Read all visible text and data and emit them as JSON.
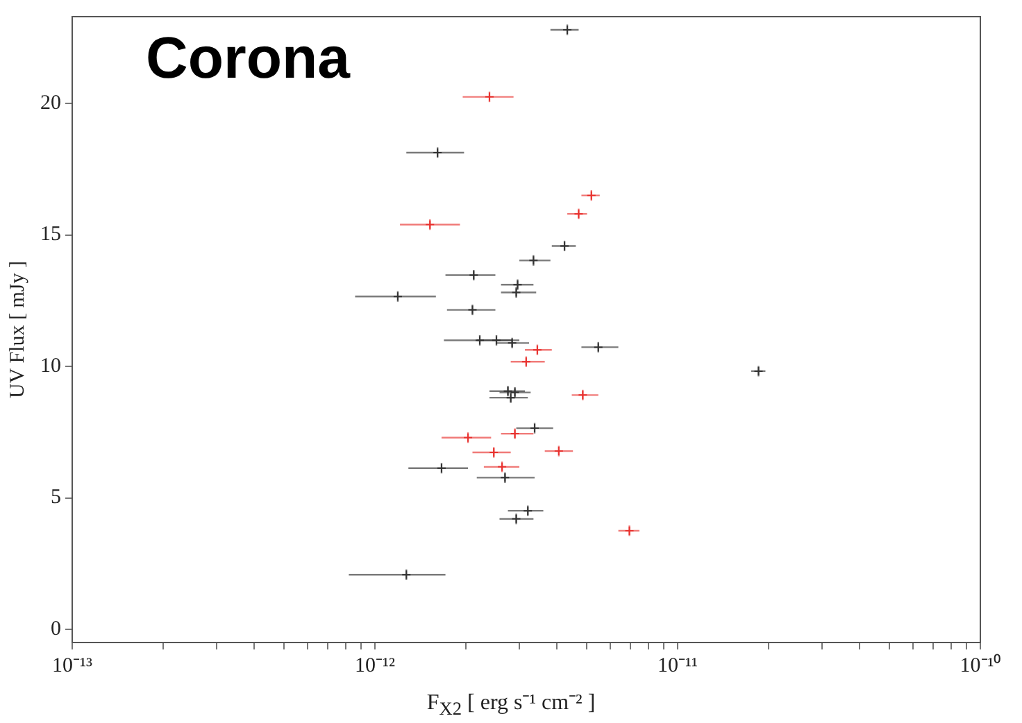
{
  "chart_data": {
    "type": "scatter",
    "title": "Corona",
    "xlabel": "F$_{X2}$ [ erg s⁻¹ cm⁻² ]",
    "ylabel": "UV Flux [ mJy ]",
    "log": "x",
    "grid": false,
    "marker": "cross",
    "xlim": [
      1e-13,
      1e-10
    ],
    "xticks": [
      {
        "value": 1e-13,
        "label": "10⁻¹³"
      },
      {
        "value": 2e-13,
        "label": null
      },
      {
        "value": 3e-13,
        "label": null
      },
      {
        "value": 4e-13,
        "label": null
      },
      {
        "value": 5e-13,
        "label": null
      },
      {
        "value": 6e-13,
        "label": null
      },
      {
        "value": 7e-13,
        "label": null
      },
      {
        "value": 8e-13,
        "label": null
      },
      {
        "value": 9e-13,
        "label": null
      },
      {
        "value": 1e-12,
        "label": "10⁻¹²"
      },
      {
        "value": 2e-12,
        "label": null
      },
      {
        "value": 3e-12,
        "label": null
      },
      {
        "value": 4e-12,
        "label": null
      },
      {
        "value": 5e-12,
        "label": null
      },
      {
        "value": 6e-12,
        "label": null
      },
      {
        "value": 7e-12,
        "label": null
      },
      {
        "value": 8e-12,
        "label": null
      },
      {
        "value": 9e-12,
        "label": null
      },
      {
        "value": 1e-11,
        "label": "10⁻¹¹"
      },
      {
        "value": 2e-11,
        "label": null
      },
      {
        "value": 3e-11,
        "label": null
      },
      {
        "value": 4e-11,
        "label": null
      },
      {
        "value": 5e-11,
        "label": null
      },
      {
        "value": 6e-11,
        "label": null
      },
      {
        "value": 7e-11,
        "label": null
      },
      {
        "value": 8e-11,
        "label": null
      },
      {
        "value": 9e-11,
        "label": null
      },
      {
        "value": 1e-10,
        "label": "10⁻¹⁰"
      }
    ],
    "ylim": [
      -0.5,
      23.3
    ],
    "yticks": [
      0,
      5,
      10,
      15,
      20
    ],
    "series": [
      {
        "color": "#333333",
        "x": [
          4.32e-12,
          1.61e-12,
          4.23e-12,
          3.34e-12,
          2.12e-12,
          2.96e-12,
          2.93e-12,
          1.19e-12,
          2.1e-12,
          2.22e-12,
          2.52e-12,
          2.84e-12,
          5.47e-12,
          1.85e-11,
          2.75e-12,
          2.9e-12,
          2.81e-12,
          3.37e-12,
          1.66e-12,
          2.69e-12,
          3.2e-12,
          2.93e-12,
          1.27e-12
        ],
        "values": [
          22.8,
          18.13,
          14.58,
          14.03,
          13.47,
          13.11,
          12.81,
          12.66,
          12.15,
          10.99,
          10.99,
          10.89,
          10.73,
          9.82,
          9.06,
          9.01,
          8.81,
          7.65,
          6.13,
          5.77,
          4.51,
          4.2,
          2.08
        ],
        "xerrors": [
          [
            3.8e-12,
            4.71e-12
          ],
          [
            1.27e-12,
            1.97e-12
          ],
          [
            3.84e-12,
            4.61e-12
          ],
          [
            3e-12,
            3.8e-12
          ],
          [
            1.71e-12,
            2.5e-12
          ],
          [
            2.61e-12,
            3.34e-12
          ],
          [
            2.61e-12,
            3.41e-12
          ],
          [
            8.6e-13,
            1.59e-12
          ],
          [
            1.73e-12,
            2.5e-12
          ],
          [
            1.69e-12,
            2.84e-12
          ],
          [
            2.17e-12,
            3e-12
          ],
          [
            2.52e-12,
            3.23e-12
          ],
          [
            4.81e-12,
            6.37e-12
          ],
          [
            1.75e-11,
            1.95e-11
          ],
          [
            2.39e-12,
            3.13e-12
          ],
          [
            2.58e-12,
            3.27e-12
          ],
          [
            2.39e-12,
            3.2e-12
          ],
          [
            2.93e-12,
            3.88e-12
          ],
          [
            1.29e-12,
            2.03e-12
          ],
          [
            2.17e-12,
            3.37e-12
          ],
          [
            2.75e-12,
            3.6e-12
          ],
          [
            2.58e-12,
            3.34e-12
          ],
          [
            8.2e-13,
            1.71e-12
          ]
        ],
        "errors": [
          0.2,
          0.2,
          0.2,
          0.2,
          0.2,
          0.2,
          0.2,
          0.2,
          0.2,
          0.2,
          0.2,
          0.2,
          0.2,
          0.2,
          0.2,
          0.2,
          0.2,
          0.2,
          0.2,
          0.2,
          0.2,
          0.2,
          0.2
        ]
      },
      {
        "color": "#e8322f",
        "x": [
          2.39e-12,
          5.19e-12,
          4.71e-12,
          1.52e-12,
          3.44e-12,
          3.16e-12,
          4.86e-12,
          2.9e-12,
          2.03e-12,
          4.05e-12,
          2.47e-12,
          2.63e-12,
          6.93e-12
        ],
        "values": [
          20.25,
          16.5,
          15.8,
          15.39,
          10.63,
          10.18,
          8.91,
          7.44,
          7.29,
          6.78,
          6.73,
          6.18,
          3.75
        ],
        "xerrors": [
          [
            1.95e-12,
            2.87e-12
          ],
          [
            4.81e-12,
            5.53e-12
          ],
          [
            4.32e-12,
            5.02e-12
          ],
          [
            1.21e-12,
            1.91e-12
          ],
          [
            3.13e-12,
            3.84e-12
          ],
          [
            2.81e-12,
            3.64e-12
          ],
          [
            4.47e-12,
            5.47e-12
          ],
          [
            2.61e-12,
            3.34e-12
          ],
          [
            1.66e-12,
            2.42e-12
          ],
          [
            3.64e-12,
            4.51e-12
          ],
          [
            2.1e-12,
            2.81e-12
          ],
          [
            2.29e-12,
            3e-12
          ],
          [
            6.37e-12,
            7.48e-12
          ]
        ],
        "errors": [
          0.2,
          0.2,
          0.2,
          0.2,
          0.2,
          0.2,
          0.2,
          0.2,
          0.2,
          0.2,
          0.2,
          0.2,
          0.2
        ]
      }
    ]
  }
}
